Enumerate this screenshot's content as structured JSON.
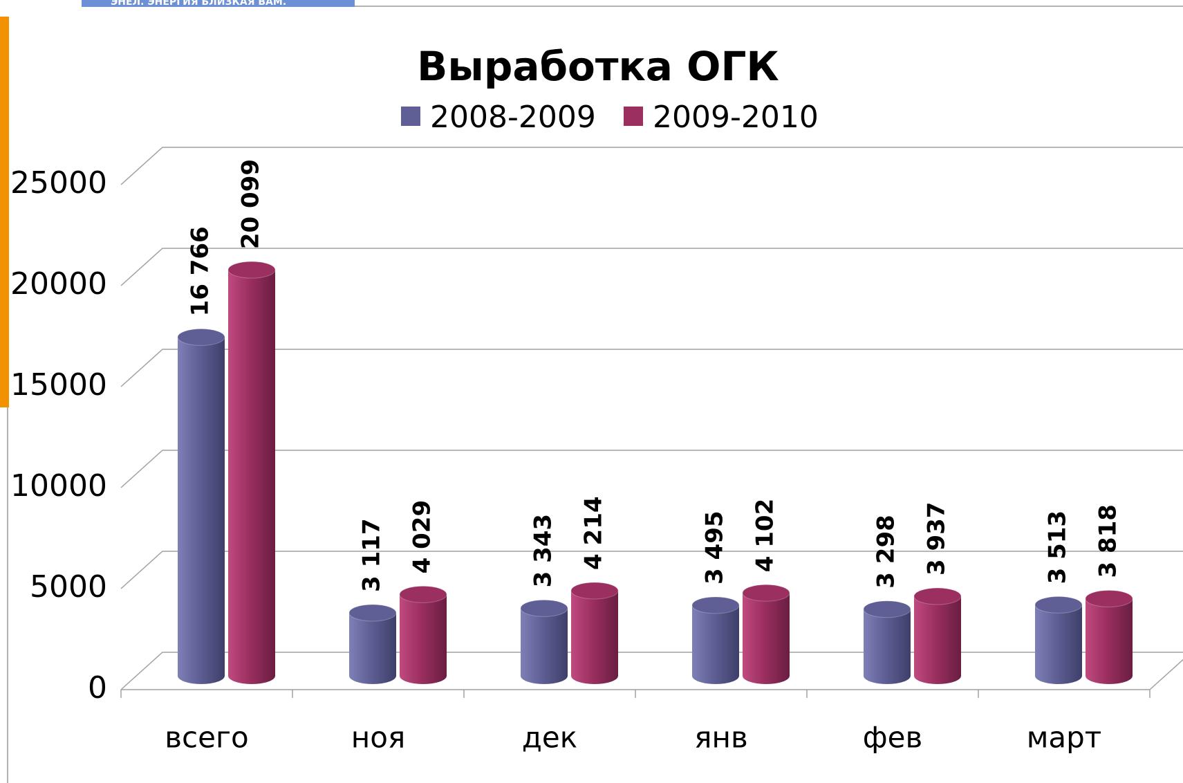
{
  "header": {
    "banner": "ЭНЕЛ. ЭНЕРГИЯ БЛИЗКАЯ ВАМ."
  },
  "chart_data": {
    "type": "bar",
    "title": "Выработка ОГК",
    "categories": [
      "всего",
      "ноя",
      "дек",
      "янв",
      "фев",
      "март"
    ],
    "series": [
      {
        "name": "2008-2009",
        "color": "#5f5f96",
        "values": [
          16766,
          3117,
          3343,
          3495,
          3298,
          3513
        ],
        "value_labels": [
          "16 766",
          "3 117",
          "3 343",
          "3 495",
          "3 298",
          "3 513"
        ]
      },
      {
        "name": "2009-2010",
        "color": "#9b2f60",
        "values": [
          20099,
          4029,
          4214,
          4102,
          3937,
          3818
        ],
        "value_labels": [
          "20 099",
          "4 029",
          "4 214",
          "4 102",
          "3 937",
          "3 818"
        ]
      }
    ],
    "ylim": [
      0,
      25000
    ],
    "yticks": [
      0,
      5000,
      10000,
      15000,
      20000,
      25000
    ],
    "grid": true,
    "legend": "top"
  }
}
